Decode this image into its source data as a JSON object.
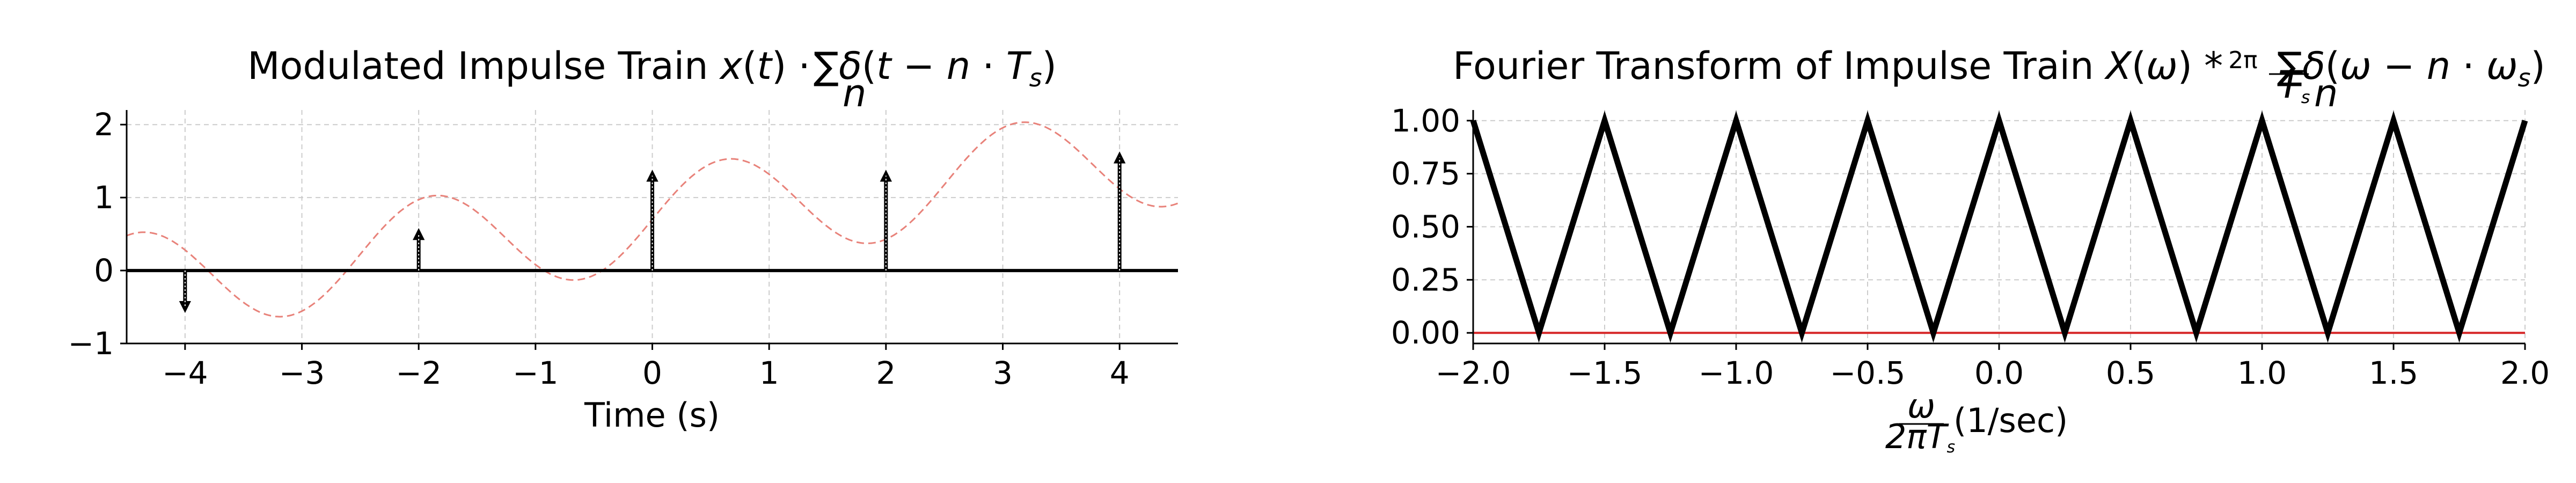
{
  "chart_data": [
    {
      "type": "line",
      "title": "Modulated Impulse Train x(t) · Σn δ(t − n · Ts)",
      "title_parts": {
        "main": "Modulated Impulse Train",
        "sigma": "∑",
        "sub": "n"
      },
      "xlabel": "Time (s)",
      "ylabel": "",
      "xlim": [
        -4.5,
        4.5
      ],
      "ylim": [
        -1,
        2.2
      ],
      "xticks": [
        -4,
        -3,
        -2,
        -1,
        0,
        1,
        2,
        3,
        4
      ],
      "yticks": [
        -1,
        0,
        1,
        2
      ],
      "grid": true,
      "series": [
        {
          "style": "dashed",
          "color": "#e8827a",
          "function": "0.2*t + 0.7 + 0.7*sin(2.5*t)"
        },
        {
          "style": "stem-arrows",
          "color": "#000000",
          "x": [
            -4,
            -2,
            0,
            2,
            4
          ],
          "y": [
            -0.5,
            0.5,
            1.3,
            1.3,
            1.55
          ]
        },
        {
          "style": "solid",
          "color": "#000000",
          "x": [
            -4.5,
            4.5
          ],
          "y": [
            0,
            0
          ]
        }
      ]
    },
    {
      "type": "line",
      "title": "Fourier Transform of Impulse Train X(ω) * (2π/Ts) Σn δ(ω − n · ωs)",
      "title_parts": {
        "main": "Fourier Transform of Impulse Train",
        "sigma": "∑",
        "sub": "n"
      },
      "xlabel": "ω / 2πTs (1/sec)",
      "xlabel_parts": {
        "num": "ω",
        "den": "2πT",
        "den_sub": "s",
        "unit": "(1/sec)"
      },
      "ylabel": "",
      "xlim": [
        -2.0,
        2.0
      ],
      "ylim": [
        -0.05,
        1.05
      ],
      "xticks": [
        -2.0,
        -1.5,
        -1.0,
        -0.5,
        0.0,
        0.5,
        1.0,
        1.5,
        2.0
      ],
      "yticks": [
        0.0,
        0.25,
        0.5,
        0.75,
        1.0
      ],
      "grid": true,
      "series": [
        {
          "style": "solid",
          "color": "#000000",
          "x": [
            -2.0,
            -1.75,
            -1.5,
            -1.25,
            -1.0,
            -0.75,
            -0.5,
            -0.25,
            0.0,
            0.25,
            0.5,
            0.75,
            1.0,
            1.25,
            1.5,
            1.75,
            2.0
          ],
          "y": [
            1,
            0,
            1,
            0,
            1,
            0,
            1,
            0,
            1,
            0,
            1,
            0,
            1,
            0,
            1,
            0,
            1
          ]
        },
        {
          "style": "solid",
          "color": "#d62728",
          "x": [
            -2.0,
            2.0
          ],
          "y": [
            0,
            0
          ]
        }
      ]
    }
  ]
}
